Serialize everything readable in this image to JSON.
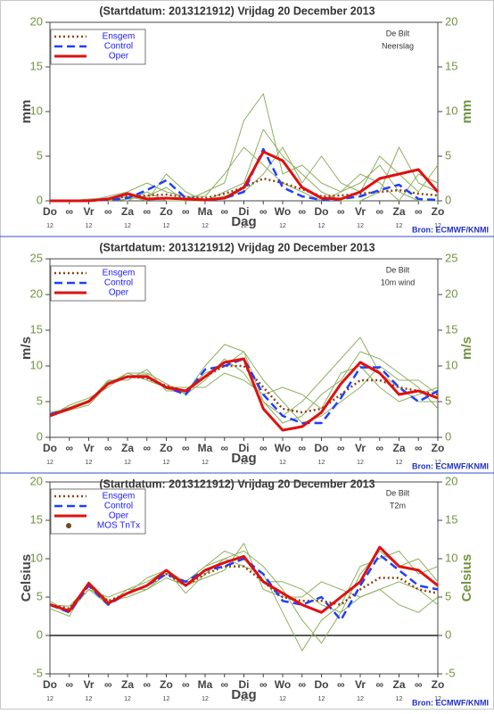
{
  "chart_data": [
    {
      "type": "line",
      "title": "(Startdatum: 2013121912)   Vrijdag   20 December  2013",
      "station": "De Bilt",
      "variable": "Neerslag",
      "ylabel": "mm",
      "xlabel": "Dag",
      "source": "Bron: ECMWF/KNMI",
      "categories": [
        "Do",
        "∞",
        "Vr",
        "∞",
        "Za",
        "∞",
        "Zo",
        "∞",
        "Ma",
        "∞",
        "Di",
        "∞",
        "Wo",
        "∞",
        "Do",
        "∞",
        "Vr",
        "∞",
        "Za",
        "∞",
        "Zo"
      ],
      "hour_labels": [
        "12",
        null,
        "12",
        null,
        "12",
        null,
        "12",
        null,
        "12",
        null,
        "12",
        null,
        "12",
        null,
        "12",
        null,
        "12",
        null,
        "12",
        null,
        "12"
      ],
      "ylim": [
        0,
        20
      ],
      "yticks": [
        0,
        5,
        10,
        15,
        20
      ],
      "zero_line": false,
      "series": [
        {
          "color": "#8fb060",
          "values": [
            0,
            0,
            0,
            0.5,
            1,
            2,
            1,
            0.5,
            0.5,
            3,
            6,
            4,
            2,
            1,
            0,
            1,
            2,
            4,
            1,
            0,
            0
          ]
        },
        {
          "color": "#8fb060",
          "values": [
            0,
            0,
            0,
            0,
            0.5,
            0,
            3,
            1,
            0,
            1,
            2,
            8,
            5,
            3,
            1,
            0,
            0,
            1,
            6,
            2,
            1
          ]
        },
        {
          "color": "#8fb060",
          "values": [
            0,
            0,
            0.2,
            0.3,
            0,
            1,
            0,
            0,
            1,
            2,
            9,
            12,
            3,
            4,
            2,
            1,
            3,
            2,
            0,
            3,
            2
          ]
        },
        {
          "color": "#8fb060",
          "values": [
            0,
            0,
            0,
            0,
            0.2,
            0.5,
            1.5,
            0,
            0,
            0.5,
            1,
            3,
            6,
            2,
            5,
            2,
            1,
            5,
            3,
            1,
            4
          ]
        },
        {
          "name": "Ensgem",
          "color": "#8b4513",
          "dash": "dotted",
          "values": [
            0,
            0,
            0,
            0.2,
            0.5,
            0.6,
            0.7,
            0.4,
            0.3,
            0.8,
            1.5,
            2.5,
            2,
            1.3,
            0.5,
            0.6,
            0.8,
            1,
            1.2,
            0.8,
            0.6
          ]
        },
        {
          "name": "Control",
          "color": "#1f3fff",
          "dash": "dashed",
          "values": [
            0,
            0,
            0,
            0.1,
            0.3,
            1.2,
            2.3,
            0.3,
            0.1,
            0.3,
            1,
            5.8,
            1.5,
            0.5,
            0.1,
            0.2,
            0.5,
            1.2,
            1.8,
            0.2,
            0.1
          ]
        },
        {
          "name": "Oper",
          "color": "#e01010",
          "dash": "solid",
          "values": [
            0,
            0,
            0,
            0.2,
            0.8,
            0.2,
            0.3,
            0.2,
            0.1,
            0.3,
            1.5,
            5.5,
            4.5,
            1.5,
            0.3,
            0.2,
            1,
            2.5,
            3,
            3.5,
            1
          ]
        }
      ]
    },
    {
      "type": "line",
      "title": "(Startdatum: 2013121912)   Vrijdag   20 December  2013",
      "station": "De Bilt",
      "variable": "10m wind",
      "ylabel": "m/s",
      "xlabel": "Dag",
      "source": "Bron: ECMWF/KNMI",
      "categories": [
        "Do",
        "∞",
        "Vr",
        "∞",
        "Za",
        "∞",
        "Zo",
        "∞",
        "Ma",
        "∞",
        "Di",
        "∞",
        "Wo",
        "∞",
        "Do",
        "∞",
        "Vr",
        "∞",
        "Za",
        "∞",
        "Zo"
      ],
      "hour_labels": [
        "12",
        null,
        "12",
        null,
        "12",
        null,
        "12",
        null,
        "12",
        null,
        "12",
        null,
        "12",
        null,
        "12",
        null,
        "12",
        null,
        "12",
        null,
        "12"
      ],
      "ylim": [
        0,
        25
      ],
      "yticks": [
        0,
        5,
        10,
        15,
        20,
        25
      ],
      "zero_line": false,
      "series": [
        {
          "color": "#8fb060",
          "values": [
            3,
            4.5,
            5.5,
            7,
            9,
            9,
            7.5,
            6,
            8,
            11,
            9,
            5,
            3,
            5,
            8,
            11,
            14,
            9,
            7,
            5,
            5
          ]
        },
        {
          "color": "#8fb060",
          "values": [
            3.5,
            4,
            5,
            8,
            8,
            9.5,
            6.5,
            6.5,
            9,
            10,
            12,
            8,
            5,
            2,
            3,
            5,
            7,
            10,
            8,
            8,
            6
          ]
        },
        {
          "color": "#8fb060",
          "values": [
            3,
            3.8,
            4.5,
            7.5,
            9,
            8,
            7,
            7,
            7,
            9,
            8,
            6,
            7,
            6,
            4,
            9,
            10,
            7,
            5,
            6,
            7
          ]
        },
        {
          "color": "#8fb060",
          "values": [
            3.3,
            4.2,
            5.2,
            7.8,
            8.6,
            8.8,
            6.8,
            6.2,
            10,
            13,
            12,
            5,
            2,
            3,
            6,
            8,
            12,
            11,
            9,
            7,
            4
          ]
        },
        {
          "name": "Ensgem",
          "color": "#8b4513",
          "dash": "dotted",
          "values": [
            3.2,
            4,
            5,
            7.5,
            8.5,
            8.3,
            7.2,
            6.5,
            8.5,
            10,
            10,
            7,
            4,
            3.5,
            4,
            6,
            8,
            8,
            7,
            6.5,
            6
          ]
        },
        {
          "name": "Control",
          "color": "#1f3fff",
          "dash": "dashed",
          "values": [
            3.2,
            4,
            5,
            7.5,
            8.5,
            8.5,
            7,
            6,
            9.5,
            10,
            11,
            6,
            3,
            2,
            2,
            5.5,
            9.8,
            9.8,
            7,
            5,
            6.5
          ]
        },
        {
          "name": "Oper",
          "color": "#e01010",
          "dash": "solid",
          "values": [
            3,
            4,
            5,
            7.5,
            8.5,
            8.5,
            7,
            6.5,
            8.5,
            10.5,
            11,
            4,
            1,
            1.5,
            3.5,
            7.5,
            10.5,
            9,
            6,
            6.5,
            5.5
          ]
        }
      ]
    },
    {
      "type": "line",
      "title": "(Startdatum: 2013121912)   Vrijdag   20 December  2013",
      "station": "De Bilt",
      "variable": "T2m",
      "ylabel": "Celsius",
      "xlabel": "Dag",
      "source": "Bron: ECMWF/KNMI",
      "categories": [
        "Do",
        "∞",
        "Vr",
        "∞",
        "Za",
        "∞",
        "Zo",
        "∞",
        "Ma",
        "∞",
        "Di",
        "∞",
        "Wo",
        "∞",
        "Do",
        "∞",
        "Vr",
        "∞",
        "Za",
        "∞",
        "Zo"
      ],
      "hour_labels": [
        "12",
        null,
        "12",
        null,
        "12",
        null,
        "12",
        null,
        "12",
        null,
        "12",
        null,
        "12",
        null,
        "12",
        null,
        "12",
        null,
        "12",
        null,
        "12"
      ],
      "ylim": [
        -5,
        20
      ],
      "yticks": [
        -5,
        0,
        5,
        10,
        15,
        20
      ],
      "zero_line": true,
      "series": [
        {
          "color": "#8fb060",
          "values": [
            4.5,
            3,
            6,
            5,
            6,
            7,
            8.5,
            7,
            9,
            10,
            11,
            9,
            6,
            2,
            -1,
            3,
            8,
            11,
            9,
            10,
            7
          ]
        },
        {
          "color": "#8fb060",
          "values": [
            3.5,
            2.5,
            7,
            4.5,
            5,
            6,
            7.5,
            6.5,
            7.5,
            8.5,
            12,
            6,
            5,
            5,
            7,
            6,
            5,
            6,
            7,
            6,
            4
          ]
        },
        {
          "color": "#8fb060",
          "values": [
            4,
            3.8,
            6.5,
            4,
            5.5,
            7.5,
            8.5,
            5.5,
            8,
            10,
            9,
            8,
            3,
            -2,
            2,
            4,
            9,
            10,
            11,
            8,
            9
          ]
        },
        {
          "color": "#8fb060",
          "values": [
            4.2,
            3.2,
            6,
            4,
            6,
            6,
            8,
            7,
            9,
            11,
            10,
            7,
            7,
            6,
            4,
            3,
            5,
            6,
            4,
            3,
            5
          ]
        },
        {
          "name": "Ensgem",
          "color": "#8b4513",
          "dash": "dotted",
          "values": [
            4,
            3.5,
            6.5,
            4.5,
            5.5,
            6.5,
            8,
            6.5,
            8,
            9,
            9,
            7,
            5,
            4.5,
            4.5,
            4,
            6,
            7.5,
            7.5,
            6,
            5.5
          ]
        },
        {
          "name": "Control",
          "color": "#1f3fff",
          "dash": "dashed",
          "values": [
            4,
            3,
            6.5,
            4,
            5.5,
            6.5,
            8,
            7,
            8.5,
            9,
            10,
            8,
            4.5,
            4,
            5,
            2,
            6.5,
            10.5,
            8.5,
            6.5,
            6
          ]
        },
        {
          "name": "Oper",
          "color": "#e01010",
          "dash": "solid",
          "values": [
            4,
            3.2,
            6.8,
            4.2,
            5.5,
            6.5,
            8.5,
            6.5,
            8.5,
            9.5,
            10.3,
            7,
            5.5,
            4,
            3,
            5,
            7,
            11.5,
            9,
            8.5,
            6.5
          ]
        },
        {
          "name": "MOS TnTx",
          "color": "#6b4a1e",
          "marker": "dot",
          "values": [
            null,
            null,
            null,
            null,
            null,
            null,
            null,
            null,
            null,
            null,
            null,
            null,
            null,
            null,
            null,
            null,
            null,
            null,
            null,
            null,
            null
          ]
        }
      ]
    }
  ]
}
